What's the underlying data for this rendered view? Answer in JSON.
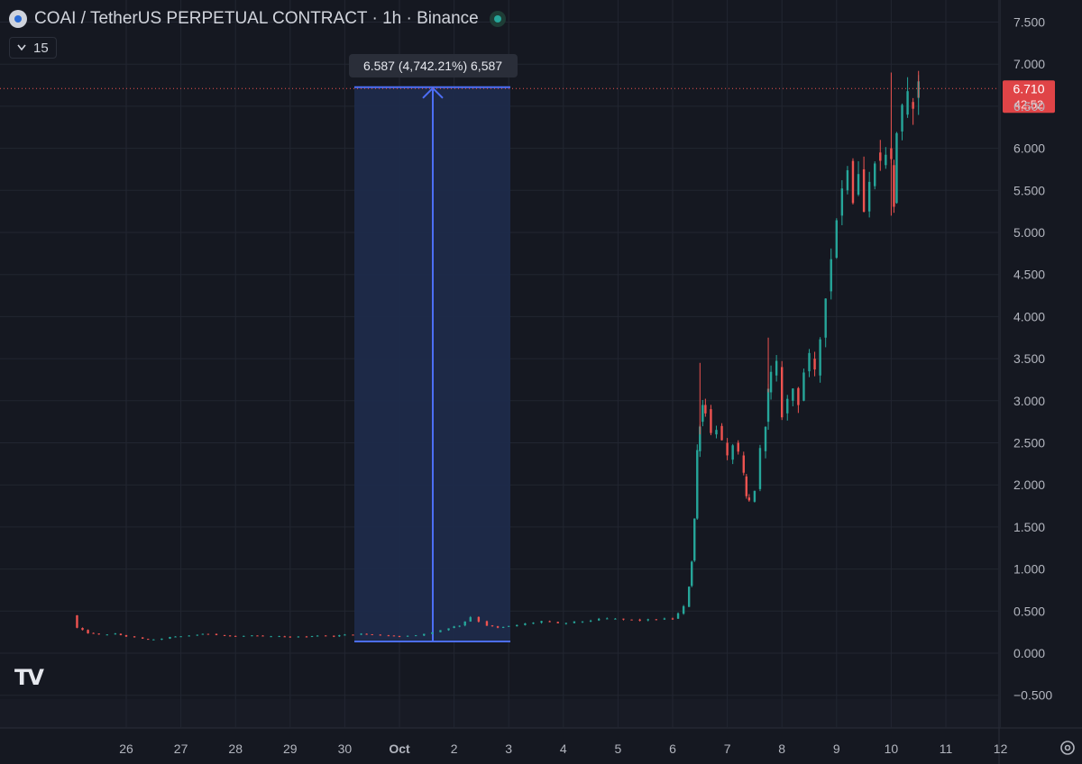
{
  "header": {
    "symbol_title": "COAI / TetherUS PERPETUAL CONTRACT · 1h · Binance",
    "interval_pill": "15",
    "logo_text": "TV"
  },
  "price_label": {
    "price": "6.710",
    "countdown": "42:52"
  },
  "measure_label": "6.587 (4,742.21%) 6,587",
  "colors": {
    "background": "#151821",
    "up": "#26a69a",
    "down": "#ef5350",
    "measure_fill": "#1e2a4a",
    "measure_line": "#4c6ef5",
    "price_line": "#ef5350"
  },
  "chart_data": {
    "type": "candlestick",
    "title": "COAI / TetherUS PERPETUAL CONTRACT · 1h · Binance",
    "x_tick_labels": [
      "26",
      "27",
      "28",
      "29",
      "30",
      "Oct",
      "2",
      "3",
      "4",
      "5",
      "6",
      "7",
      "8",
      "9",
      "10",
      "11",
      "12"
    ],
    "y_tick_labels": [
      "7.500",
      "7.000",
      "6.500",
      "6.000",
      "5.500",
      "5.000",
      "4.500",
      "4.000",
      "3.500",
      "3.000",
      "2.500",
      "2.000",
      "1.500",
      "1.000",
      "0.500",
      "0.000",
      "−0.500"
    ],
    "ylim": [
      -0.5,
      7.5
    ],
    "last_price": 6.71,
    "measure": {
      "from_day": 30.2,
      "to_day": 33.0,
      "low": 0.139,
      "high": 6.726
    },
    "series": [
      {
        "name": "close",
        "day": [
          25.0,
          25.1,
          25.3,
          25.5,
          25.8,
          26.0,
          26.3,
          26.5,
          26.8,
          27.0,
          27.3,
          27.5,
          27.8,
          28.0,
          28.3,
          28.5,
          28.8,
          29.0,
          29.3,
          29.5,
          29.8,
          30.0,
          30.3,
          30.5,
          30.8,
          31.0,
          31.3,
          31.6,
          31.9,
          32.1,
          32.3,
          32.45,
          32.6,
          32.8,
          33.0,
          33.3,
          33.6,
          33.9,
          34.2,
          34.5,
          34.8,
          35.1,
          35.4,
          35.7,
          36.0,
          36.1,
          36.2,
          36.3,
          36.35,
          36.4,
          36.45,
          36.5,
          36.55,
          36.6,
          36.7,
          36.8,
          36.9,
          37.0,
          37.1,
          37.2,
          37.3,
          37.35,
          37.4,
          37.5,
          37.6,
          37.7,
          37.75,
          37.8,
          37.9,
          38.0,
          38.1,
          38.2,
          38.3,
          38.4,
          38.5,
          38.6,
          38.7,
          38.8,
          38.9,
          39.0,
          39.1,
          39.2,
          39.3,
          39.4,
          39.5,
          39.6,
          39.7,
          39.8,
          39.9,
          40.0,
          40.05,
          40.1,
          40.2,
          40.3,
          40.4,
          40.5
        ],
        "values": [
          0.45,
          0.3,
          0.24,
          0.22,
          0.23,
          0.2,
          0.17,
          0.16,
          0.19,
          0.2,
          0.22,
          0.23,
          0.21,
          0.2,
          0.21,
          0.2,
          0.2,
          0.19,
          0.2,
          0.21,
          0.2,
          0.22,
          0.23,
          0.22,
          0.21,
          0.2,
          0.21,
          0.25,
          0.3,
          0.33,
          0.43,
          0.38,
          0.33,
          0.3,
          0.32,
          0.35,
          0.38,
          0.35,
          0.37,
          0.39,
          0.41,
          0.4,
          0.39,
          0.4,
          0.41,
          0.47,
          0.55,
          0.8,
          1.1,
          1.6,
          2.4,
          2.75,
          2.95,
          2.9,
          2.6,
          2.7,
          2.5,
          2.3,
          2.5,
          2.35,
          2.1,
          1.85,
          1.8,
          1.95,
          2.4,
          2.75,
          3.1,
          3.3,
          3.4,
          2.85,
          3.0,
          3.15,
          3.0,
          3.35,
          3.5,
          3.3,
          3.75,
          4.3,
          4.7,
          5.2,
          5.5,
          5.85,
          5.45,
          5.75,
          5.25,
          5.55,
          5.95,
          5.8,
          6.0,
          5.8,
          5.35,
          6.2,
          6.4,
          6.55,
          6.6,
          6.71
        ]
      }
    ]
  }
}
